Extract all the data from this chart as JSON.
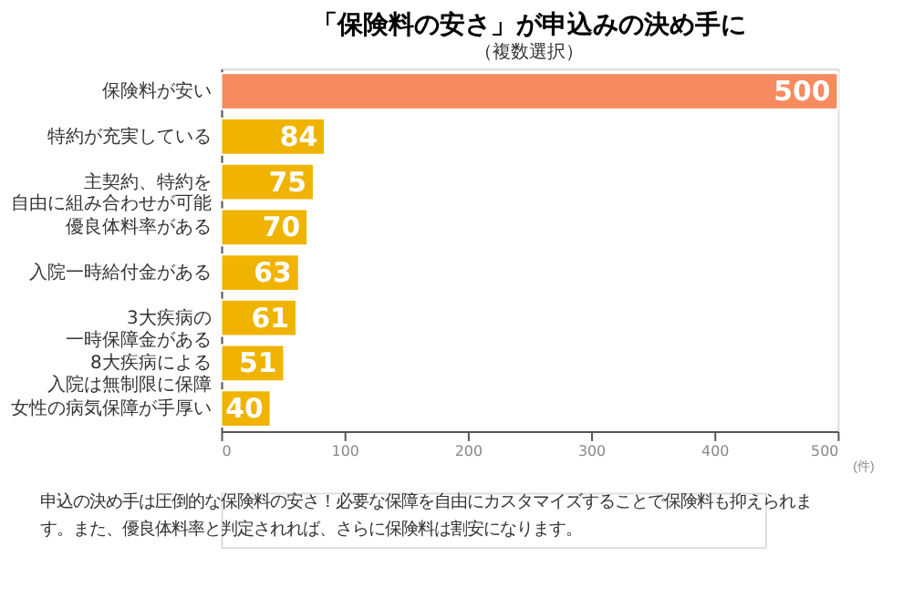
{
  "chart_data": {
    "type": "bar",
    "orientation": "horizontal",
    "title": "「保険料の安さ」が申込みの決め手に",
    "subtitle": "（複数選択）",
    "categories": [
      "保険料が安い",
      "特約が充実している",
      "主契約、特約を自由に組み合わせが可能",
      "優良体料率がある",
      "入院一時給付金がある",
      "3大疾病の一時保障金がある",
      "8大疾病による入院は無制限に保障",
      "女性の病気保障が手厚い"
    ],
    "values": [
      500,
      84,
      75,
      70,
      63,
      61,
      51,
      40
    ],
    "colors": [
      "#f58b5f",
      "#f0b400",
      "#f0b400",
      "#f0b400",
      "#f0b400",
      "#f0b400",
      "#f0b400",
      "#f0b400"
    ],
    "xlabel": "(件)",
    "xlim": [
      0,
      500
    ],
    "xticks": [
      0,
      100,
      200,
      300,
      400,
      500
    ],
    "grid": false,
    "data_labels": true,
    "annotations": [
      "申込の決め手は圧倒的な保険料の安さ！必要な保障を自由にカスタマイズすることで保険料も抑えられます。また、優良体料率と判定されれば、さらに保険料は割安になります。"
    ]
  }
}
